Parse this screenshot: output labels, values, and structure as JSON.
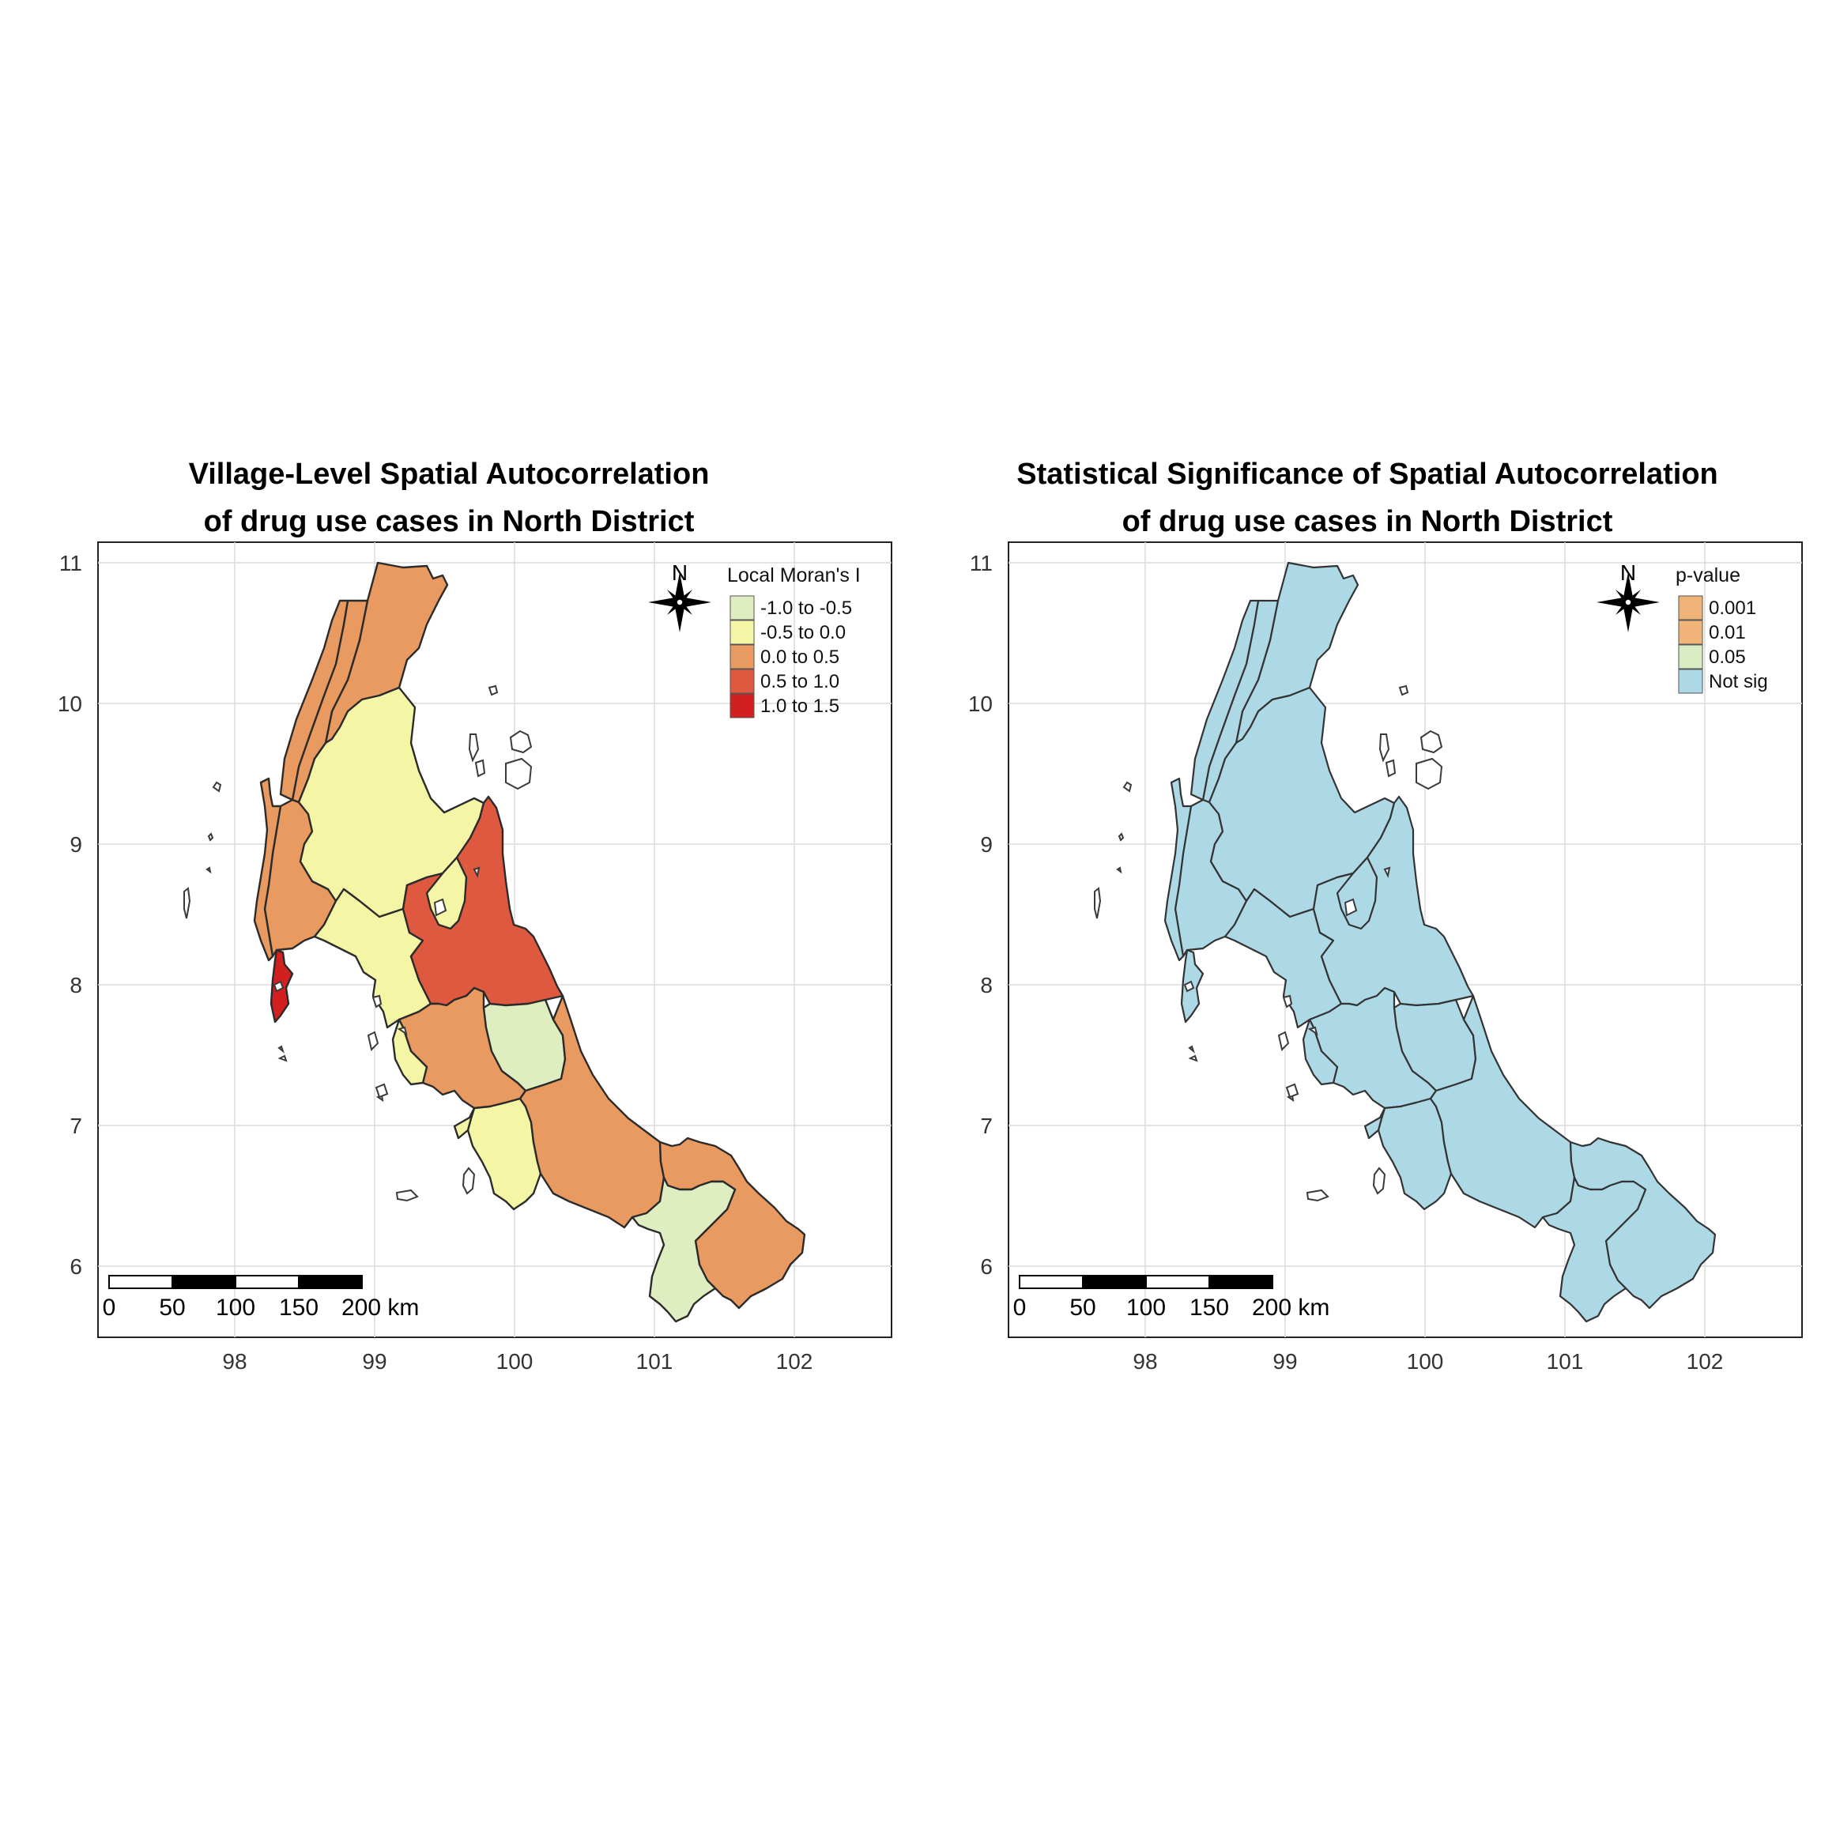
{
  "panels": [
    {
      "id": "moran",
      "title_line1": "Village-Level Spatial Autocorrelation",
      "title_line2": "of drug use cases in North District",
      "legend_title": "Local Moran's I",
      "legend_items": [
        {
          "label": "-1.0 to -0.5",
          "color": "#dfeec0"
        },
        {
          "label": "-0.5 to 0.0",
          "color": "#f5f5a6"
        },
        {
          "label": "0.0 to 0.5",
          "color": "#e89a60"
        },
        {
          "label": "0.5 to 1.0",
          "color": "#de5940"
        },
        {
          "label": "1.0 to 1.5",
          "color": "#d21f1f"
        }
      ],
      "region_classes": [
        "0.0 to 0.5",
        "0.0 to 0.5",
        "0.0 to 0.5",
        "0.0 to 0.5",
        "-0.5 to 0.0",
        "-0.5 to 0.0",
        "1.0 to 1.5",
        "0.5 to 1.0",
        "0.0 to 0.5",
        "-1.0 to -0.5",
        "-0.5 to 0.0",
        "0.0 to 0.5",
        "0.0 to 0.5",
        "-1.0 to -0.5",
        "0.0 to 0.5",
        "-0.5 to 0.0",
        "-0.5 to 0.0",
        "-0.5 to 0.0"
      ]
    },
    {
      "id": "pvalue",
      "title_line1": "Statistical Significance of Spatial Autocorrelation",
      "title_line2": "of drug use cases in North District",
      "legend_title": "p-value",
      "legend_items": [
        {
          "label": "0.001",
          "color": "#f0b478"
        },
        {
          "label": "0.01",
          "color": "#f0b478"
        },
        {
          "label": "0.05",
          "color": "#d9ecc4"
        },
        {
          "label": "Not sig",
          "color": "#add8e6"
        }
      ],
      "region_classes": [
        "Not sig",
        "Not sig",
        "Not sig",
        "Not sig",
        "Not sig",
        "Not sig",
        "Not sig",
        "Not sig",
        "Not sig",
        "Not sig",
        "Not sig",
        "Not sig",
        "Not sig",
        "Not sig",
        "Not sig",
        "Not sig",
        "Not sig",
        "Not sig"
      ]
    }
  ],
  "axes": {
    "x_ticks": [
      "98",
      "99",
      "100",
      "101",
      "102"
    ],
    "y_ticks": [
      "11",
      "10",
      "9",
      "8",
      "7",
      "6"
    ],
    "xlim": [
      97.15,
      102.85
    ],
    "ylim": [
      5.5,
      11.15
    ]
  },
  "north_arrow_label": "N",
  "scale_bar": {
    "labels": [
      "0",
      "50",
      "100",
      "150",
      "200 km"
    ]
  }
}
